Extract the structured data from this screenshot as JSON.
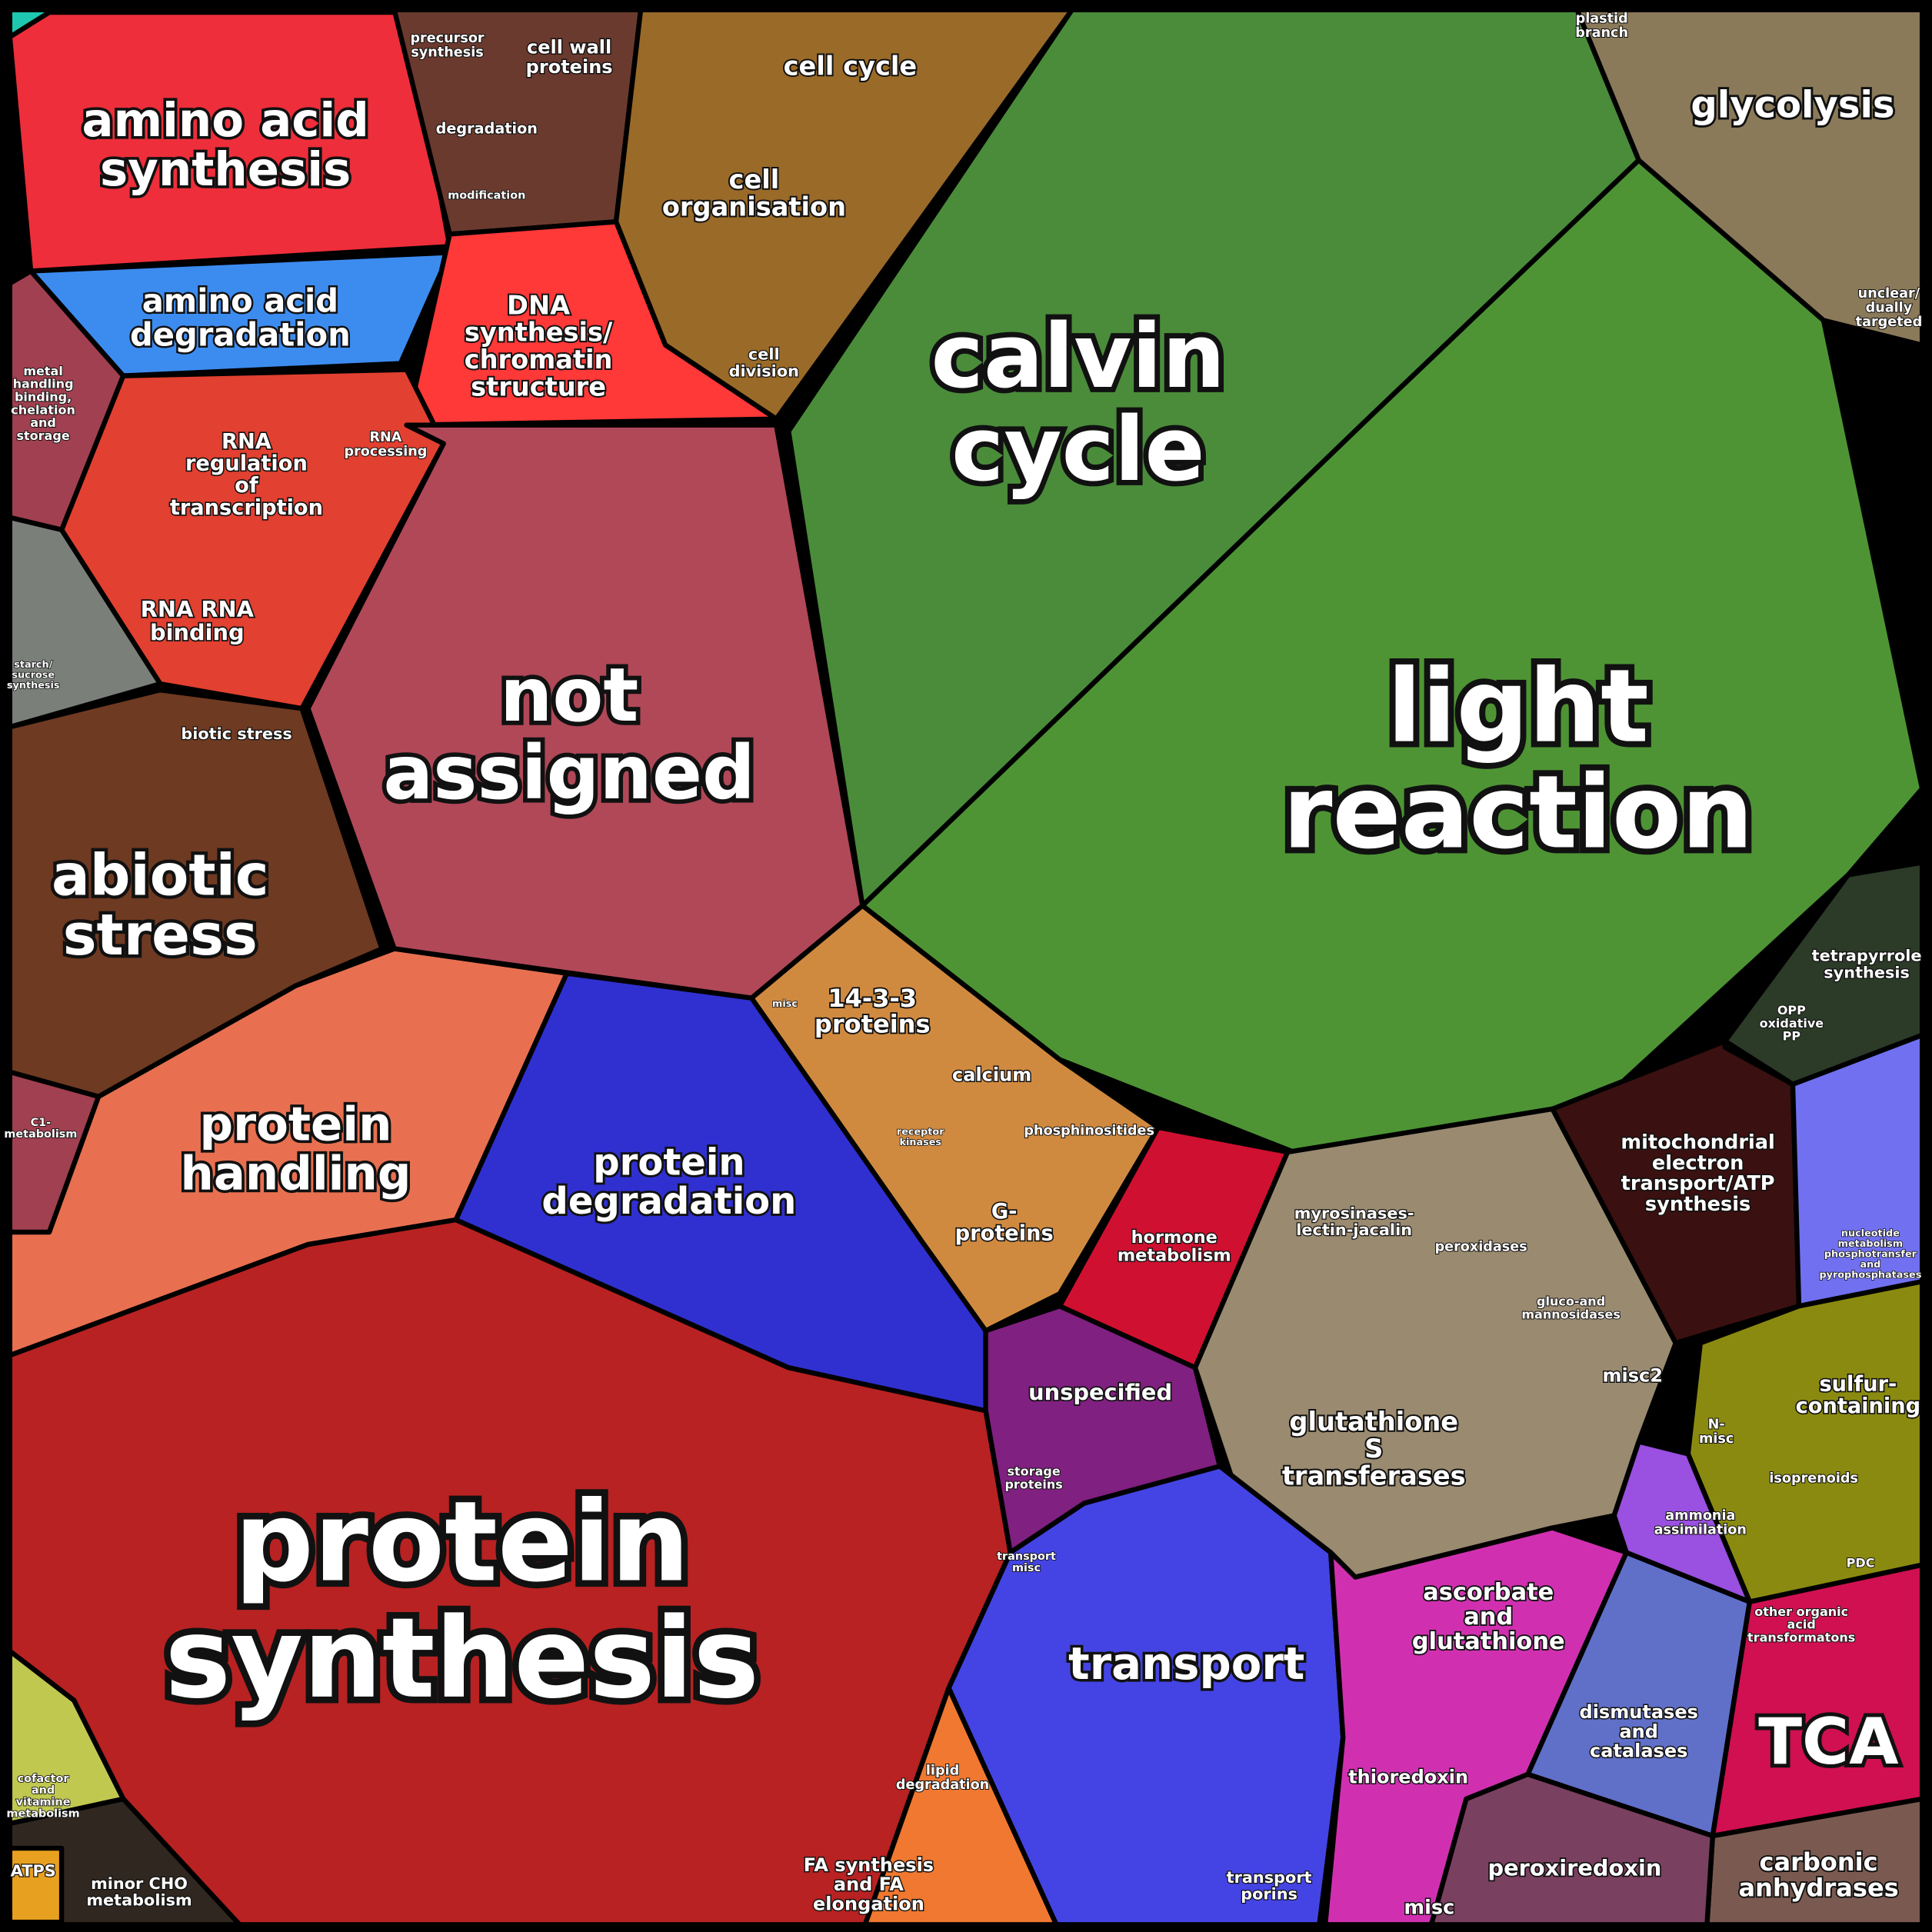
{
  "regions": [
    {
      "lines": [
        "amino acid",
        "synthesis"
      ]
    },
    {
      "lines": [
        "amino acid",
        "degradation"
      ]
    },
    {
      "lines": [
        "DNA",
        "synthesis/",
        "chromatin",
        "structure"
      ]
    },
    {
      "lines": [
        "precursor",
        "synthesis"
      ]
    },
    {
      "lines": [
        "cell wall",
        "proteins"
      ]
    },
    {
      "lines": [
        "degradation"
      ]
    },
    {
      "lines": [
        "modification"
      ]
    },
    {
      "lines": [
        "cell cycle"
      ]
    },
    {
      "lines": [
        "cell",
        "organisation"
      ]
    },
    {
      "lines": [
        "cell",
        "division"
      ]
    },
    {
      "lines": [
        "calvin",
        "cycle"
      ]
    },
    {
      "lines": [
        "light",
        "reaction"
      ]
    },
    {
      "lines": [
        "glycolysis"
      ]
    },
    {
      "lines": [
        "plastid",
        "branch"
      ]
    },
    {
      "lines": [
        "unclear/",
        "dually",
        "targeted"
      ]
    },
    {
      "lines": [
        "RNA",
        "regulation",
        "of",
        "transcription"
      ]
    },
    {
      "lines": [
        "RNA",
        "processing"
      ]
    },
    {
      "lines": [
        "RNA RNA",
        "binding"
      ]
    },
    {
      "lines": [
        "metal",
        "handling",
        "binding,",
        "chelation",
        "and",
        "storage"
      ]
    },
    {
      "lines": [
        "starch/",
        "sucrose",
        "synthesis"
      ]
    },
    {
      "lines": [
        "not",
        "assigned"
      ]
    },
    {
      "lines": [
        "biotic stress"
      ]
    },
    {
      "lines": [
        "abiotic",
        "stress"
      ]
    },
    {
      "lines": [
        "C1-",
        "metabolism"
      ]
    },
    {
      "lines": [
        "protein",
        "handling"
      ]
    },
    {
      "lines": [
        "protein",
        "degradation"
      ]
    },
    {
      "lines": [
        "protein",
        "synthesis"
      ]
    },
    {
      "lines": [
        "14-3-3",
        "proteins"
      ]
    },
    {
      "lines": [
        "calcium"
      ]
    },
    {
      "lines": [
        "phosphinositides"
      ]
    },
    {
      "lines": [
        "G-",
        "proteins"
      ]
    },
    {
      "lines": [
        "hormone",
        "metabolism"
      ]
    },
    {
      "lines": [
        "unspecified"
      ]
    },
    {
      "lines": [
        "storage",
        "proteins"
      ]
    },
    {
      "lines": [
        "myrosinases-",
        "lectin-jacalin"
      ]
    },
    {
      "lines": [
        "peroxidases"
      ]
    },
    {
      "lines": [
        "gluco-and",
        "mannosidases"
      ]
    },
    {
      "lines": [
        "misc2"
      ]
    },
    {
      "lines": [
        "glutathione",
        "S",
        "transferases"
      ]
    },
    {
      "lines": [
        "mitochondrial",
        "electron",
        "transport/ATP",
        "synthesis"
      ]
    },
    {
      "lines": [
        "tetrapyrrole",
        "synthesis"
      ]
    },
    {
      "lines": [
        "OPP",
        "oxidative",
        "PP"
      ]
    },
    {
      "lines": [
        "nucleotide",
        "metabolism",
        "phosphotransfer",
        "and",
        "pyrophosphatases"
      ]
    },
    {
      "lines": [
        "sulfur-",
        "containing"
      ]
    },
    {
      "lines": [
        "N-",
        "misc"
      ]
    },
    {
      "lines": [
        "isoprenoids"
      ]
    },
    {
      "lines": [
        "ammonia",
        "assimilation"
      ]
    },
    {
      "lines": [
        "transport"
      ]
    },
    {
      "lines": [
        "transport",
        "misc"
      ]
    },
    {
      "lines": [
        "transport",
        "porins"
      ]
    },
    {
      "lines": [
        "ascorbate",
        "and",
        "glutathione"
      ]
    },
    {
      "lines": [
        "dismutases",
        "and",
        "catalases"
      ]
    },
    {
      "lines": [
        "other organic",
        "acid",
        "transformatons"
      ]
    },
    {
      "lines": [
        "TCA"
      ]
    },
    {
      "lines": [
        "thioredoxin"
      ]
    },
    {
      "lines": [
        "peroxiredoxin"
      ]
    },
    {
      "lines": [
        "misc"
      ]
    },
    {
      "lines": [
        "carbonic",
        "anhydrases"
      ]
    },
    {
      "lines": [
        "lipid",
        "degradation"
      ]
    },
    {
      "lines": [
        "FA synthesis",
        "and FA",
        "elongation"
      ]
    },
    {
      "lines": [
        "cofactor",
        "and",
        "vitamine",
        "metabolism"
      ]
    },
    {
      "lines": [
        "minor CHO",
        "metabolism"
      ]
    },
    {
      "lines": [
        "ATPS"
      ]
    },
    {
      "lines": [
        "misc"
      ]
    },
    {
      "lines": [
        "receptor",
        "kinases"
      ]
    },
    {
      "lines": [
        "PDC"
      ]
    }
  ]
}
